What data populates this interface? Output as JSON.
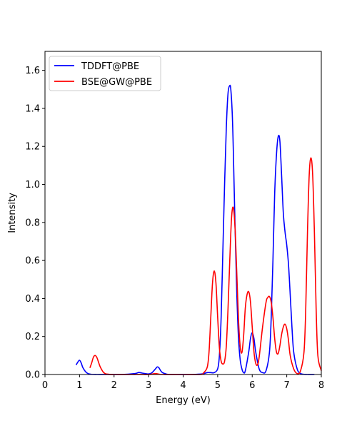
{
  "chart_data": {
    "type": "line",
    "xlabel": "Energy (eV)",
    "ylabel": "Intensity",
    "xlim": [
      0,
      8
    ],
    "ylim": [
      0,
      1.7
    ],
    "xticks": [
      0,
      1,
      2,
      3,
      4,
      5,
      6,
      7,
      8
    ],
    "yticks": [
      0.0,
      0.2,
      0.4,
      0.6,
      0.8,
      1.0,
      1.2,
      1.4,
      1.6
    ],
    "xtick_labels": [
      "0",
      "1",
      "2",
      "3",
      "4",
      "5",
      "6",
      "7",
      "8"
    ],
    "ytick_labels": [
      "0.0",
      "0.2",
      "0.4",
      "0.6",
      "0.8",
      "1.0",
      "1.2",
      "1.4",
      "1.6"
    ],
    "grid": false,
    "legend_position": "top-left",
    "series": [
      {
        "name": "TDDFT@PBE",
        "color": "#0000ff",
        "x": [
          0.9,
          0.95,
          1.0,
          1.05,
          1.1,
          1.2,
          1.3,
          1.5,
          1.8,
          2.2,
          2.6,
          2.7,
          2.75,
          2.8,
          2.9,
          3.0,
          3.1,
          3.2,
          3.25,
          3.3,
          3.35,
          3.4,
          3.5,
          3.6,
          3.8,
          4.2,
          4.5,
          4.6,
          4.7,
          4.8,
          4.9,
          5.0,
          5.05,
          5.1,
          5.15,
          5.2,
          5.25,
          5.3,
          5.35,
          5.38,
          5.42,
          5.45,
          5.5,
          5.55,
          5.6,
          5.65,
          5.7,
          5.75,
          5.8,
          5.9,
          5.95,
          6.0,
          6.05,
          6.1,
          6.2,
          6.3,
          6.4,
          6.5,
          6.55,
          6.6,
          6.65,
          6.7,
          6.75,
          6.8,
          6.85,
          6.9,
          6.95,
          7.0,
          7.05,
          7.1,
          7.15,
          7.2,
          7.3,
          7.4,
          7.6,
          7.8
        ],
        "values": [
          0.05,
          0.065,
          0.075,
          0.06,
          0.035,
          0.01,
          0.002,
          0.0,
          0.0,
          0.0,
          0.005,
          0.01,
          0.01,
          0.008,
          0.005,
          0.003,
          0.01,
          0.03,
          0.04,
          0.035,
          0.02,
          0.01,
          0.003,
          0.0,
          0.0,
          0.0,
          0.002,
          0.005,
          0.01,
          0.01,
          0.01,
          0.03,
          0.1,
          0.3,
          0.65,
          1.0,
          1.3,
          1.48,
          1.52,
          1.5,
          1.38,
          1.2,
          0.8,
          0.45,
          0.2,
          0.08,
          0.03,
          0.01,
          0.02,
          0.12,
          0.19,
          0.22,
          0.19,
          0.12,
          0.03,
          0.01,
          0.02,
          0.12,
          0.3,
          0.6,
          0.95,
          1.15,
          1.25,
          1.23,
          1.05,
          0.85,
          0.75,
          0.68,
          0.58,
          0.42,
          0.25,
          0.12,
          0.03,
          0.005,
          0.0,
          0.0
        ]
      },
      {
        "name": "BSE@GW@PBE",
        "color": "#ff0000",
        "x": [
          1.3,
          1.35,
          1.4,
          1.45,
          1.5,
          1.55,
          1.6,
          1.7,
          1.8,
          2.0,
          2.5,
          3.0,
          3.2,
          3.4,
          4.0,
          4.5,
          4.6,
          4.7,
          4.75,
          4.8,
          4.85,
          4.9,
          4.95,
          5.0,
          5.05,
          5.1,
          5.15,
          5.2,
          5.25,
          5.3,
          5.35,
          5.4,
          5.45,
          5.5,
          5.55,
          5.6,
          5.65,
          5.7,
          5.75,
          5.8,
          5.85,
          5.9,
          5.95,
          6.0,
          6.05,
          6.1,
          6.15,
          6.2,
          6.3,
          6.4,
          6.45,
          6.5,
          6.55,
          6.6,
          6.65,
          6.7,
          6.75,
          6.8,
          6.85,
          6.9,
          6.95,
          7.0,
          7.05,
          7.1,
          7.2,
          7.3,
          7.4,
          7.5,
          7.55,
          7.6,
          7.65,
          7.7,
          7.75,
          7.8,
          7.85,
          7.9,
          8.0
        ],
        "values": [
          0.035,
          0.06,
          0.09,
          0.1,
          0.09,
          0.065,
          0.04,
          0.01,
          0.002,
          0.0,
          0.0,
          0.0,
          0.005,
          0.0,
          0.0,
          0.0,
          0.01,
          0.04,
          0.12,
          0.3,
          0.48,
          0.545,
          0.48,
          0.3,
          0.14,
          0.07,
          0.055,
          0.07,
          0.15,
          0.35,
          0.6,
          0.82,
          0.88,
          0.78,
          0.55,
          0.3,
          0.15,
          0.115,
          0.2,
          0.35,
          0.42,
          0.435,
          0.38,
          0.25,
          0.12,
          0.06,
          0.05,
          0.09,
          0.25,
          0.38,
          0.405,
          0.41,
          0.38,
          0.3,
          0.19,
          0.12,
          0.11,
          0.15,
          0.21,
          0.25,
          0.265,
          0.24,
          0.18,
          0.1,
          0.03,
          0.005,
          0.02,
          0.12,
          0.35,
          0.75,
          1.05,
          1.14,
          1.05,
          0.75,
          0.35,
          0.1,
          0.02
        ]
      }
    ]
  }
}
